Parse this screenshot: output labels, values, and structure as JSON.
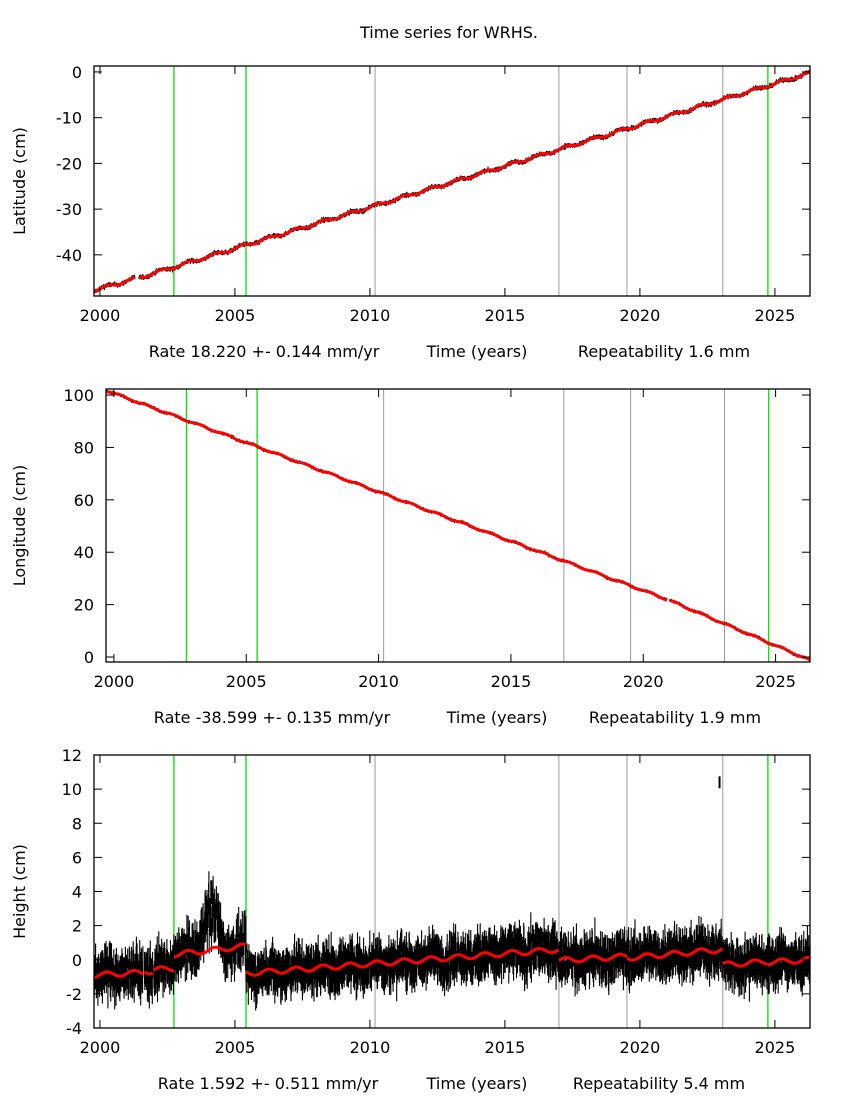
{
  "title": "Time series for WRHS.",
  "chart_data": [
    {
      "type": "scatter",
      "ylabel": "Latitude (cm)",
      "xlabel": "Time (years)",
      "rate_text": "Rate 18.220 +- 0.144 mm/yr",
      "repeat_text": "Repeatability 1.6 mm",
      "xlim": [
        1999.78,
        2026.3
      ],
      "ylim": [
        -49.0,
        1.3
      ],
      "xticks": [
        2000,
        2005,
        2010,
        2015,
        2020,
        2025
      ],
      "yticks": [
        0,
        -10,
        -20,
        -30,
        -40
      ],
      "noise_cm": 0.25,
      "seasonal_cm": 0.3,
      "segments": [
        {
          "x0": 1999.78,
          "x1": 2001.3,
          "y0": -47.8,
          "y1": -45.2
        },
        {
          "x0": 2001.45,
          "x1": 2026.3,
          "y0": -45.0,
          "y1": -0.2
        }
      ],
      "outliers": []
    },
    {
      "type": "scatter",
      "ylabel": "Longitude (cm)",
      "xlabel": "Time (years)",
      "rate_text": "Rate -38.599 +- 0.135 mm/yr",
      "repeat_text": "Repeatability 1.9 mm",
      "xlim": [
        1999.7,
        2026.3
      ],
      "ylim": [
        -1.9,
        102.3
      ],
      "xticks": [
        2000,
        2005,
        2010,
        2015,
        2020,
        2025
      ],
      "yticks": [
        0,
        20,
        40,
        60,
        80,
        100
      ],
      "noise_cm": 0.3,
      "seasonal_cm": 0.3,
      "segments": [
        {
          "x0": 1999.7,
          "x1": 2020.9,
          "y0": 101.8,
          "y1": 22.0
        },
        {
          "x0": 2021.0,
          "x1": 2026.3,
          "y0": 21.6,
          "y1": -1.2
        }
      ],
      "outliers": []
    },
    {
      "type": "scatter",
      "ylabel": "Height (cm)",
      "xlabel": "Time (years)",
      "rate_text": "Rate 1.592 +- 0.511 mm/yr",
      "repeat_text": "Repeatability 5.4 mm",
      "xlim": [
        1999.78,
        2026.3
      ],
      "ylim": [
        -4,
        12
      ],
      "xticks": [
        2000,
        2005,
        2010,
        2015,
        2020,
        2025
      ],
      "yticks": [
        -4,
        -2,
        0,
        2,
        4,
        6,
        8,
        10,
        12
      ],
      "noise_cm": 0.7,
      "seasonal_cm": 0.15,
      "segments": [
        {
          "x0": 1999.78,
          "x1": 2001.6,
          "y0": -0.9,
          "y1": -0.75
        },
        {
          "x0": 2001.65,
          "x1": 2001.95,
          "y0": -0.6,
          "y1": -0.75
        },
        {
          "x0": 2002.0,
          "x1": 2002.74,
          "y0": -0.6,
          "y1": -0.5
        },
        {
          "x0": 2002.74,
          "x1": 2005.41,
          "y0": 0.3,
          "y1": 0.8
        },
        {
          "x0": 2005.41,
          "x1": 2017.0,
          "y0": -0.8,
          "y1": 0.6
        },
        {
          "x0": 2017.0,
          "x1": 2019.52,
          "y0": -0.05,
          "y1": 0.2
        },
        {
          "x0": 2019.52,
          "x1": 2023.07,
          "y0": 0.1,
          "y1": 0.6
        },
        {
          "x0": 2023.07,
          "x1": 2024.74,
          "y0": -0.3,
          "y1": -0.1
        },
        {
          "x0": 2024.74,
          "x1": 2026.3,
          "y0": -0.15,
          "y1": 0.0
        }
      ],
      "bumps": [
        {
          "x0": 2003.6,
          "x1": 2004.6,
          "amp": 2.2
        }
      ],
      "outliers": [
        {
          "x": 2022.95,
          "y": 10.4
        }
      ]
    }
  ],
  "event_lines": {
    "antenna_changes": [
      2002.74,
      2005.41,
      2024.74
    ],
    "other": [
      2010.19,
      2017.0,
      2019.52,
      2023.07
    ]
  },
  "colors": {
    "data": "#000000",
    "fit": "#ff0000",
    "event": "#00e000",
    "event_other": "#9a9a9a"
  }
}
